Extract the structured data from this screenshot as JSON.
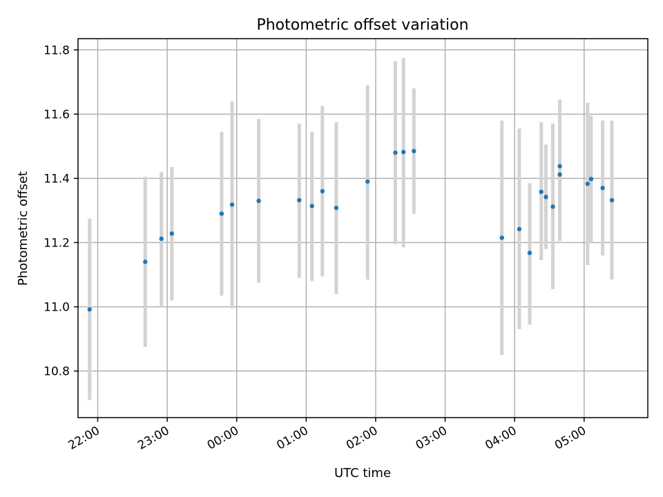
{
  "chart_data": {
    "type": "scatter",
    "title": "Photometric offset variation",
    "xlabel": "UTC time",
    "ylabel": "Photometric offset",
    "x_ticks": [
      "22:00",
      "23:00",
      "00:00",
      "01:00",
      "02:00",
      "03:00",
      "04:00",
      "05:00"
    ],
    "y_ticks": [
      "10.8",
      "11.0",
      "11.2",
      "11.4",
      "11.6",
      "11.8"
    ],
    "xlim": [
      "21:43",
      "05:55"
    ],
    "ylim": [
      10.655,
      11.835
    ],
    "grid": true,
    "errorbar_color": "#d3d3d3",
    "marker_color": "#1f77b4",
    "points": [
      {
        "x": "21:53",
        "y": 10.992,
        "ylo": 10.71,
        "yhi": 11.275
      },
      {
        "x": "22:41",
        "y": 11.14,
        "ylo": 10.875,
        "yhi": 11.405
      },
      {
        "x": "22:55",
        "y": 11.212,
        "ylo": 11.0,
        "yhi": 11.42
      },
      {
        "x": "23:04",
        "y": 11.228,
        "ylo": 11.02,
        "yhi": 11.435
      },
      {
        "x": "23:47",
        "y": 11.29,
        "ylo": 11.035,
        "yhi": 11.545
      },
      {
        "x": "23:56",
        "y": 11.318,
        "ylo": 10.995,
        "yhi": 11.64
      },
      {
        "x": "00:19",
        "y": 11.33,
        "ylo": 11.075,
        "yhi": 11.585
      },
      {
        "x": "00:54",
        "y": 11.332,
        "ylo": 11.09,
        "yhi": 11.57
      },
      {
        "x": "01:05",
        "y": 11.314,
        "ylo": 11.08,
        "yhi": 11.545
      },
      {
        "x": "01:14",
        "y": 11.36,
        "ylo": 11.095,
        "yhi": 11.625
      },
      {
        "x": "01:26",
        "y": 11.308,
        "ylo": 11.04,
        "yhi": 11.575
      },
      {
        "x": "01:53",
        "y": 11.39,
        "ylo": 11.085,
        "yhi": 11.69
      },
      {
        "x": "02:17",
        "y": 11.48,
        "ylo": 11.195,
        "yhi": 11.765
      },
      {
        "x": "02:24",
        "y": 11.482,
        "ylo": 11.185,
        "yhi": 11.775
      },
      {
        "x": "02:33",
        "y": 11.485,
        "ylo": 11.29,
        "yhi": 11.68
      },
      {
        "x": "03:49",
        "y": 11.215,
        "ylo": 10.85,
        "yhi": 11.58
      },
      {
        "x": "04:04",
        "y": 11.242,
        "ylo": 10.93,
        "yhi": 11.555
      },
      {
        "x": "04:13",
        "y": 11.168,
        "ylo": 10.945,
        "yhi": 11.385
      },
      {
        "x": "04:23",
        "y": 11.358,
        "ylo": 11.145,
        "yhi": 11.575
      },
      {
        "x": "04:27",
        "y": 11.342,
        "ylo": 11.18,
        "yhi": 11.505
      },
      {
        "x": "04:33",
        "y": 11.312,
        "ylo": 11.055,
        "yhi": 11.57
      },
      {
        "x": "04:39",
        "y": 11.438,
        "ylo": 11.205,
        "yhi": 11.645
      },
      {
        "x": "04:39",
        "y": 11.412,
        "ylo": 11.205,
        "yhi": 11.645
      },
      {
        "x": "05:03",
        "y": 11.383,
        "ylo": 11.13,
        "yhi": 11.635
      },
      {
        "x": "05:06",
        "y": 11.398,
        "ylo": 11.2,
        "yhi": 11.595
      },
      {
        "x": "05:16",
        "y": 11.37,
        "ylo": 11.16,
        "yhi": 11.58
      },
      {
        "x": "05:24",
        "y": 11.332,
        "ylo": 11.085,
        "yhi": 11.58
      }
    ]
  }
}
